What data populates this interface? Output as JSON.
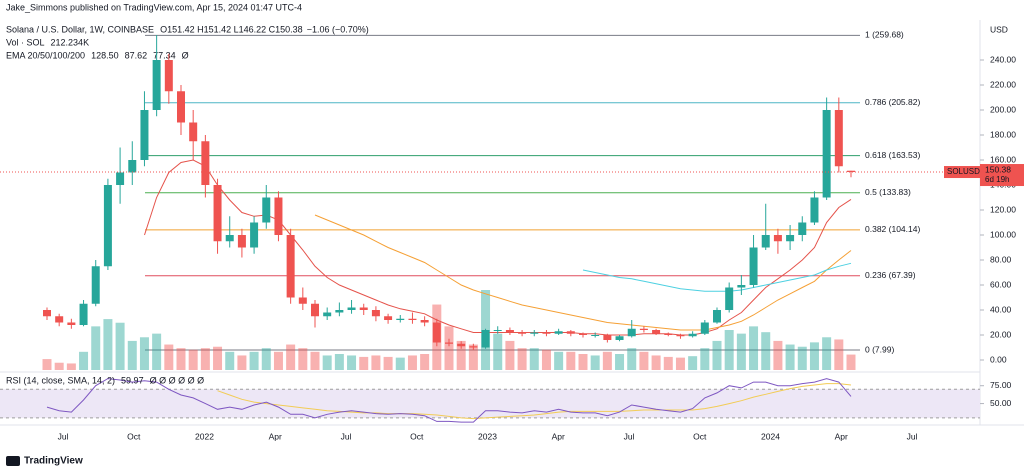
{
  "chart_data": {
    "type": "candlestick",
    "publisher": "Jake_Simmons published on TradingView.com, Apr 15, 2024 01:47 UTC-4",
    "symbol": "Solana / U.S. Dollar, 1W, COINBASE",
    "ohlc_text": "O151.42 H151.42 L146.22 C150.38",
    "change": "−1.06 (−0.70%)",
    "vol_label": "Vol · SOL",
    "vol_value": "212.234K",
    "ema_label": "EMA 20/50/100/200",
    "ema_values": [
      "128.50",
      "87.62",
      "77.34",
      "Ø"
    ],
    "currency": "USD",
    "up_color": "#26a69a",
    "down_color": "#ef5350",
    "open": [
      40,
      35,
      30,
      28,
      45,
      75,
      140,
      150,
      160,
      200,
      240,
      215,
      190,
      175,
      140,
      95,
      100,
      90,
      110,
      130,
      100,
      50,
      45,
      35,
      38,
      40,
      42,
      40,
      35,
      32,
      33,
      32,
      30,
      14,
      13,
      11,
      10,
      24,
      24,
      22,
      21,
      22,
      21,
      23,
      21,
      20,
      20,
      16,
      19,
      25,
      24,
      21,
      20,
      19,
      21,
      30,
      40,
      58,
      60,
      90,
      100,
      95,
      100,
      110,
      130,
      200,
      151.42
    ],
    "high": [
      42,
      37,
      33,
      48,
      80,
      145,
      170,
      175,
      215,
      260,
      245,
      220,
      200,
      180,
      145,
      115,
      105,
      115,
      140,
      135,
      105,
      58,
      48,
      42,
      46,
      48,
      45,
      43,
      37,
      36,
      38,
      35,
      33,
      17,
      15,
      13,
      25,
      27,
      26,
      24,
      24,
      24,
      25,
      24,
      22,
      22,
      21,
      20,
      32,
      27,
      25,
      22,
      21,
      23,
      32,
      42,
      62,
      68,
      100,
      125,
      105,
      108,
      115,
      135,
      210,
      210,
      151.42
    ],
    "low": [
      32,
      27,
      25,
      27,
      43,
      72,
      125,
      140,
      155,
      195,
      205,
      180,
      160,
      130,
      85,
      90,
      82,
      85,
      105,
      95,
      45,
      40,
      26,
      32,
      35,
      37,
      36,
      31,
      29,
      30,
      29,
      27,
      11,
      11,
      9,
      8,
      9,
      21,
      20,
      19,
      19,
      19,
      20,
      19,
      18,
      18,
      14,
      15,
      18,
      22,
      20,
      19,
      17,
      18,
      20,
      29,
      38,
      52,
      58,
      88,
      85,
      88,
      95,
      108,
      128,
      150,
      146.22
    ],
    "close": [
      35,
      30,
      28,
      45,
      75,
      140,
      150,
      160,
      200,
      240,
      215,
      190,
      175,
      140,
      95,
      100,
      90,
      110,
      130,
      100,
      50,
      45,
      35,
      38,
      40,
      42,
      40,
      35,
      32,
      33,
      32,
      30,
      14,
      13,
      11,
      10,
      24,
      24,
      22,
      21,
      22,
      21,
      23,
      21,
      20,
      20,
      16,
      19,
      25,
      24,
      21,
      20,
      19,
      21,
      30,
      40,
      58,
      60,
      90,
      100,
      95,
      100,
      110,
      130,
      200,
      155,
      150.38
    ],
    "volume": [
      150,
      100,
      90,
      250,
      600,
      700,
      650,
      400,
      450,
      500,
      350,
      300,
      280,
      300,
      320,
      250,
      200,
      250,
      300,
      250,
      350,
      300,
      250,
      200,
      220,
      200,
      180,
      200,
      180,
      170,
      200,
      220,
      900,
      600,
      400,
      350,
      1100,
      500,
      400,
      300,
      300,
      280,
      250,
      250,
      220,
      200,
      250,
      220,
      300,
      250,
      200,
      180,
      170,
      190,
      300,
      400,
      550,
      500,
      600,
      520,
      400,
      350,
      320,
      380,
      450,
      420,
      212.234
    ],
    "ema": [
      {
        "color": "#e5534b",
        "values": [
          null,
          null,
          null,
          null,
          null,
          null,
          null,
          null,
          100,
          130,
          150,
          158,
          160,
          155,
          140,
          128,
          118,
          115,
          116,
          112,
          100,
          88,
          75,
          66,
          60,
          56,
          52,
          48,
          44,
          41,
          39,
          37,
          32,
          28,
          25,
          22,
          22,
          22,
          22,
          22,
          22,
          22,
          22,
          22,
          21,
          21,
          20,
          20,
          20,
          21,
          21,
          21,
          20,
          20,
          22,
          25,
          32,
          38,
          48,
          58,
          65,
          72,
          80,
          90,
          110,
          122,
          128.5
        ]
      },
      {
        "color": "#f5a035",
        "values": [
          null,
          null,
          null,
          null,
          null,
          null,
          null,
          null,
          null,
          null,
          null,
          null,
          null,
          null,
          null,
          null,
          null,
          null,
          null,
          null,
          null,
          null,
          116,
          112,
          108,
          104,
          100,
          95,
          90,
          86,
          82,
          78,
          72,
          66,
          60,
          56,
          53,
          50,
          47,
          44,
          42,
          40,
          38,
          36,
          34,
          32,
          30,
          29,
          28,
          27,
          26,
          25,
          24,
          24,
          24,
          26,
          28,
          31,
          36,
          42,
          48,
          53,
          58,
          63,
          72,
          80,
          87.62
        ]
      },
      {
        "color": "#4dd0e1",
        "values": [
          null,
          null,
          null,
          null,
          null,
          null,
          null,
          null,
          null,
          null,
          null,
          null,
          null,
          null,
          null,
          null,
          null,
          null,
          null,
          null,
          null,
          null,
          null,
          null,
          null,
          null,
          null,
          null,
          null,
          null,
          null,
          null,
          null,
          null,
          null,
          null,
          null,
          null,
          null,
          null,
          null,
          null,
          null,
          null,
          72,
          70,
          68,
          66,
          65,
          63,
          61,
          59,
          57,
          56,
          55,
          55,
          55,
          56,
          58,
          60,
          62,
          64,
          66,
          68,
          72,
          75,
          77.34
        ]
      }
    ],
    "ylim": [
      0,
      260
    ],
    "yticks": [
      {
        "value": 0,
        "label": "0.00"
      },
      {
        "value": 20,
        "label": "20.00"
      },
      {
        "value": 40,
        "label": "40.00"
      },
      {
        "value": 60,
        "label": "60.00"
      },
      {
        "value": 80,
        "label": "80.00"
      },
      {
        "value": 100,
        "label": "100.00"
      },
      {
        "value": 120,
        "label": "120.00"
      },
      {
        "value": 140,
        "label": "140.00"
      },
      {
        "value": 160,
        "label": "160.00"
      },
      {
        "value": 180,
        "label": "180.00"
      },
      {
        "value": 200,
        "label": "200.00"
      },
      {
        "value": 220,
        "label": "220.00"
      },
      {
        "value": 240,
        "label": "240.00"
      }
    ],
    "fib": [
      {
        "value": 259.68,
        "label": "1 (259.68)",
        "color": "#787b86"
      },
      {
        "value": 205.82,
        "label": "0.786 (205.82)",
        "color": "#4fb6c6"
      },
      {
        "value": 163.53,
        "label": "0.618 (163.53)",
        "color": "#2e9e6b"
      },
      {
        "value": 133.83,
        "label": "0.5 (133.83)",
        "color": "#4caf50"
      },
      {
        "value": 104.14,
        "label": "0.382 (104.14)",
        "color": "#f0a030"
      },
      {
        "value": 67.39,
        "label": "0.236 (67.39)",
        "color": "#e04f5f"
      },
      {
        "value": 7.99,
        "label": "0 (7.99)",
        "color": "#787b86"
      }
    ],
    "price_tag": {
      "symbol": "SOLUSD",
      "value": 150.38,
      "value_label": "150.38",
      "countdown": "6d 19h"
    },
    "rsi": {
      "label": "RSI (14, close, SMA, 14, 2)",
      "value_label": "59.97",
      "flags": "Ø Ø Ø Ø Ø Ø",
      "color": "#7e57c2",
      "sma_color": "#f2cc55",
      "ylim": [
        20,
        90
      ],
      "yticks": [
        {
          "value": 75,
          "label": "75.00"
        },
        {
          "value": 50,
          "label": "50.00"
        }
      ],
      "band": [
        30,
        70
      ],
      "values": [
        45,
        40,
        38,
        55,
        75,
        85,
        83,
        80,
        82,
        80,
        70,
        62,
        58,
        50,
        42,
        45,
        42,
        48,
        52,
        45,
        35,
        35,
        30,
        35,
        38,
        40,
        38,
        36,
        35,
        36,
        35,
        33,
        25,
        25,
        24,
        24,
        40,
        40,
        38,
        37,
        40,
        38,
        42,
        38,
        37,
        37,
        33,
        38,
        48,
        45,
        42,
        40,
        38,
        43,
        58,
        65,
        75,
        72,
        80,
        80,
        75,
        75,
        78,
        80,
        85,
        80,
        59.97
      ],
      "sma": [
        null,
        null,
        null,
        null,
        null,
        null,
        null,
        null,
        null,
        null,
        null,
        null,
        null,
        null,
        68,
        62,
        56,
        52,
        50,
        48,
        46,
        44,
        42,
        40,
        39,
        38,
        37,
        37,
        36,
        36,
        36,
        35,
        34,
        32,
        30,
        29,
        30,
        31,
        32,
        33,
        34,
        36,
        38,
        39,
        39,
        39,
        39,
        39,
        40,
        41,
        41,
        41,
        41,
        41,
        43,
        46,
        50,
        54,
        59,
        63,
        67,
        71,
        74,
        76,
        78,
        78,
        76
      ]
    },
    "time_labels": [
      "Jul",
      "Oct",
      "2022",
      "Apr",
      "Jul",
      "Oct",
      "2023",
      "Apr",
      "Jul",
      "Oct",
      "2024",
      "Apr",
      "Jul"
    ],
    "brand": "TradingView"
  }
}
